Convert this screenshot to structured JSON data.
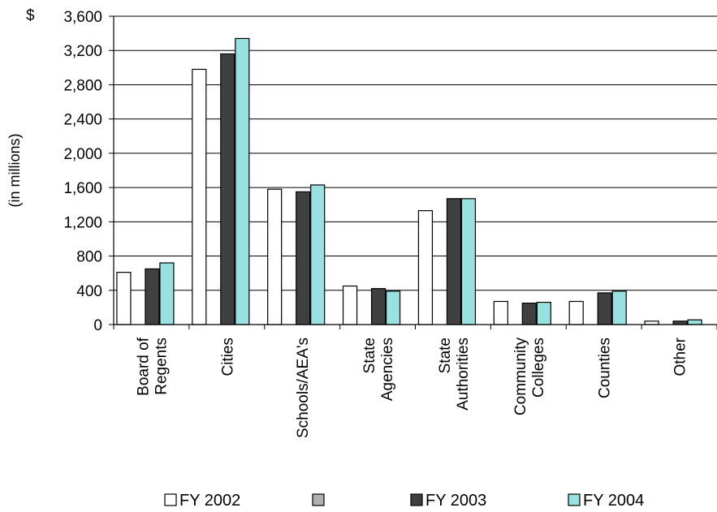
{
  "chart_data": {
    "type": "bar",
    "currency_symbol": "$",
    "ylabel": "(in millions)",
    "ylim": [
      0,
      3600
    ],
    "yticks": [
      "0",
      "400",
      "800",
      "1,200",
      "1,600",
      "2,000",
      "2,400",
      "2,800",
      "3,200",
      "3,600"
    ],
    "ytick_values": [
      0,
      400,
      800,
      1200,
      1600,
      2000,
      2400,
      2800,
      3200,
      3600
    ],
    "grid": true,
    "legend_position": "bottom",
    "categories": [
      [
        "Board of",
        "Regents"
      ],
      [
        "Cities"
      ],
      [
        "Schools/AEA's"
      ],
      [
        "State",
        "Agencies"
      ],
      [
        "State",
        "Authorities"
      ],
      [
        "Community",
        "Colleges"
      ],
      [
        "Counties"
      ],
      [
        "Other"
      ]
    ],
    "series": [
      {
        "name": "FY 2002",
        "color": "#ffffff",
        "values": [
          610,
          2980,
          1580,
          450,
          1330,
          270,
          270,
          40
        ]
      },
      {
        "name": "FY 2003",
        "color": "#404040",
        "values": [
          650,
          3160,
          1550,
          420,
          1470,
          250,
          370,
          40
        ]
      },
      {
        "name": "FY 2004",
        "color": "#99e0e0",
        "values": [
          720,
          3340,
          1630,
          390,
          1470,
          260,
          390,
          55
        ]
      }
    ],
    "legend": [
      {
        "label": "FY 2002",
        "color": "#ffffff"
      },
      {
        "label": "",
        "color": "#b0b0b0"
      },
      {
        "label": "FY 2003",
        "color": "#404040"
      },
      {
        "label": "FY 2004",
        "color": "#99e0e0"
      }
    ]
  }
}
